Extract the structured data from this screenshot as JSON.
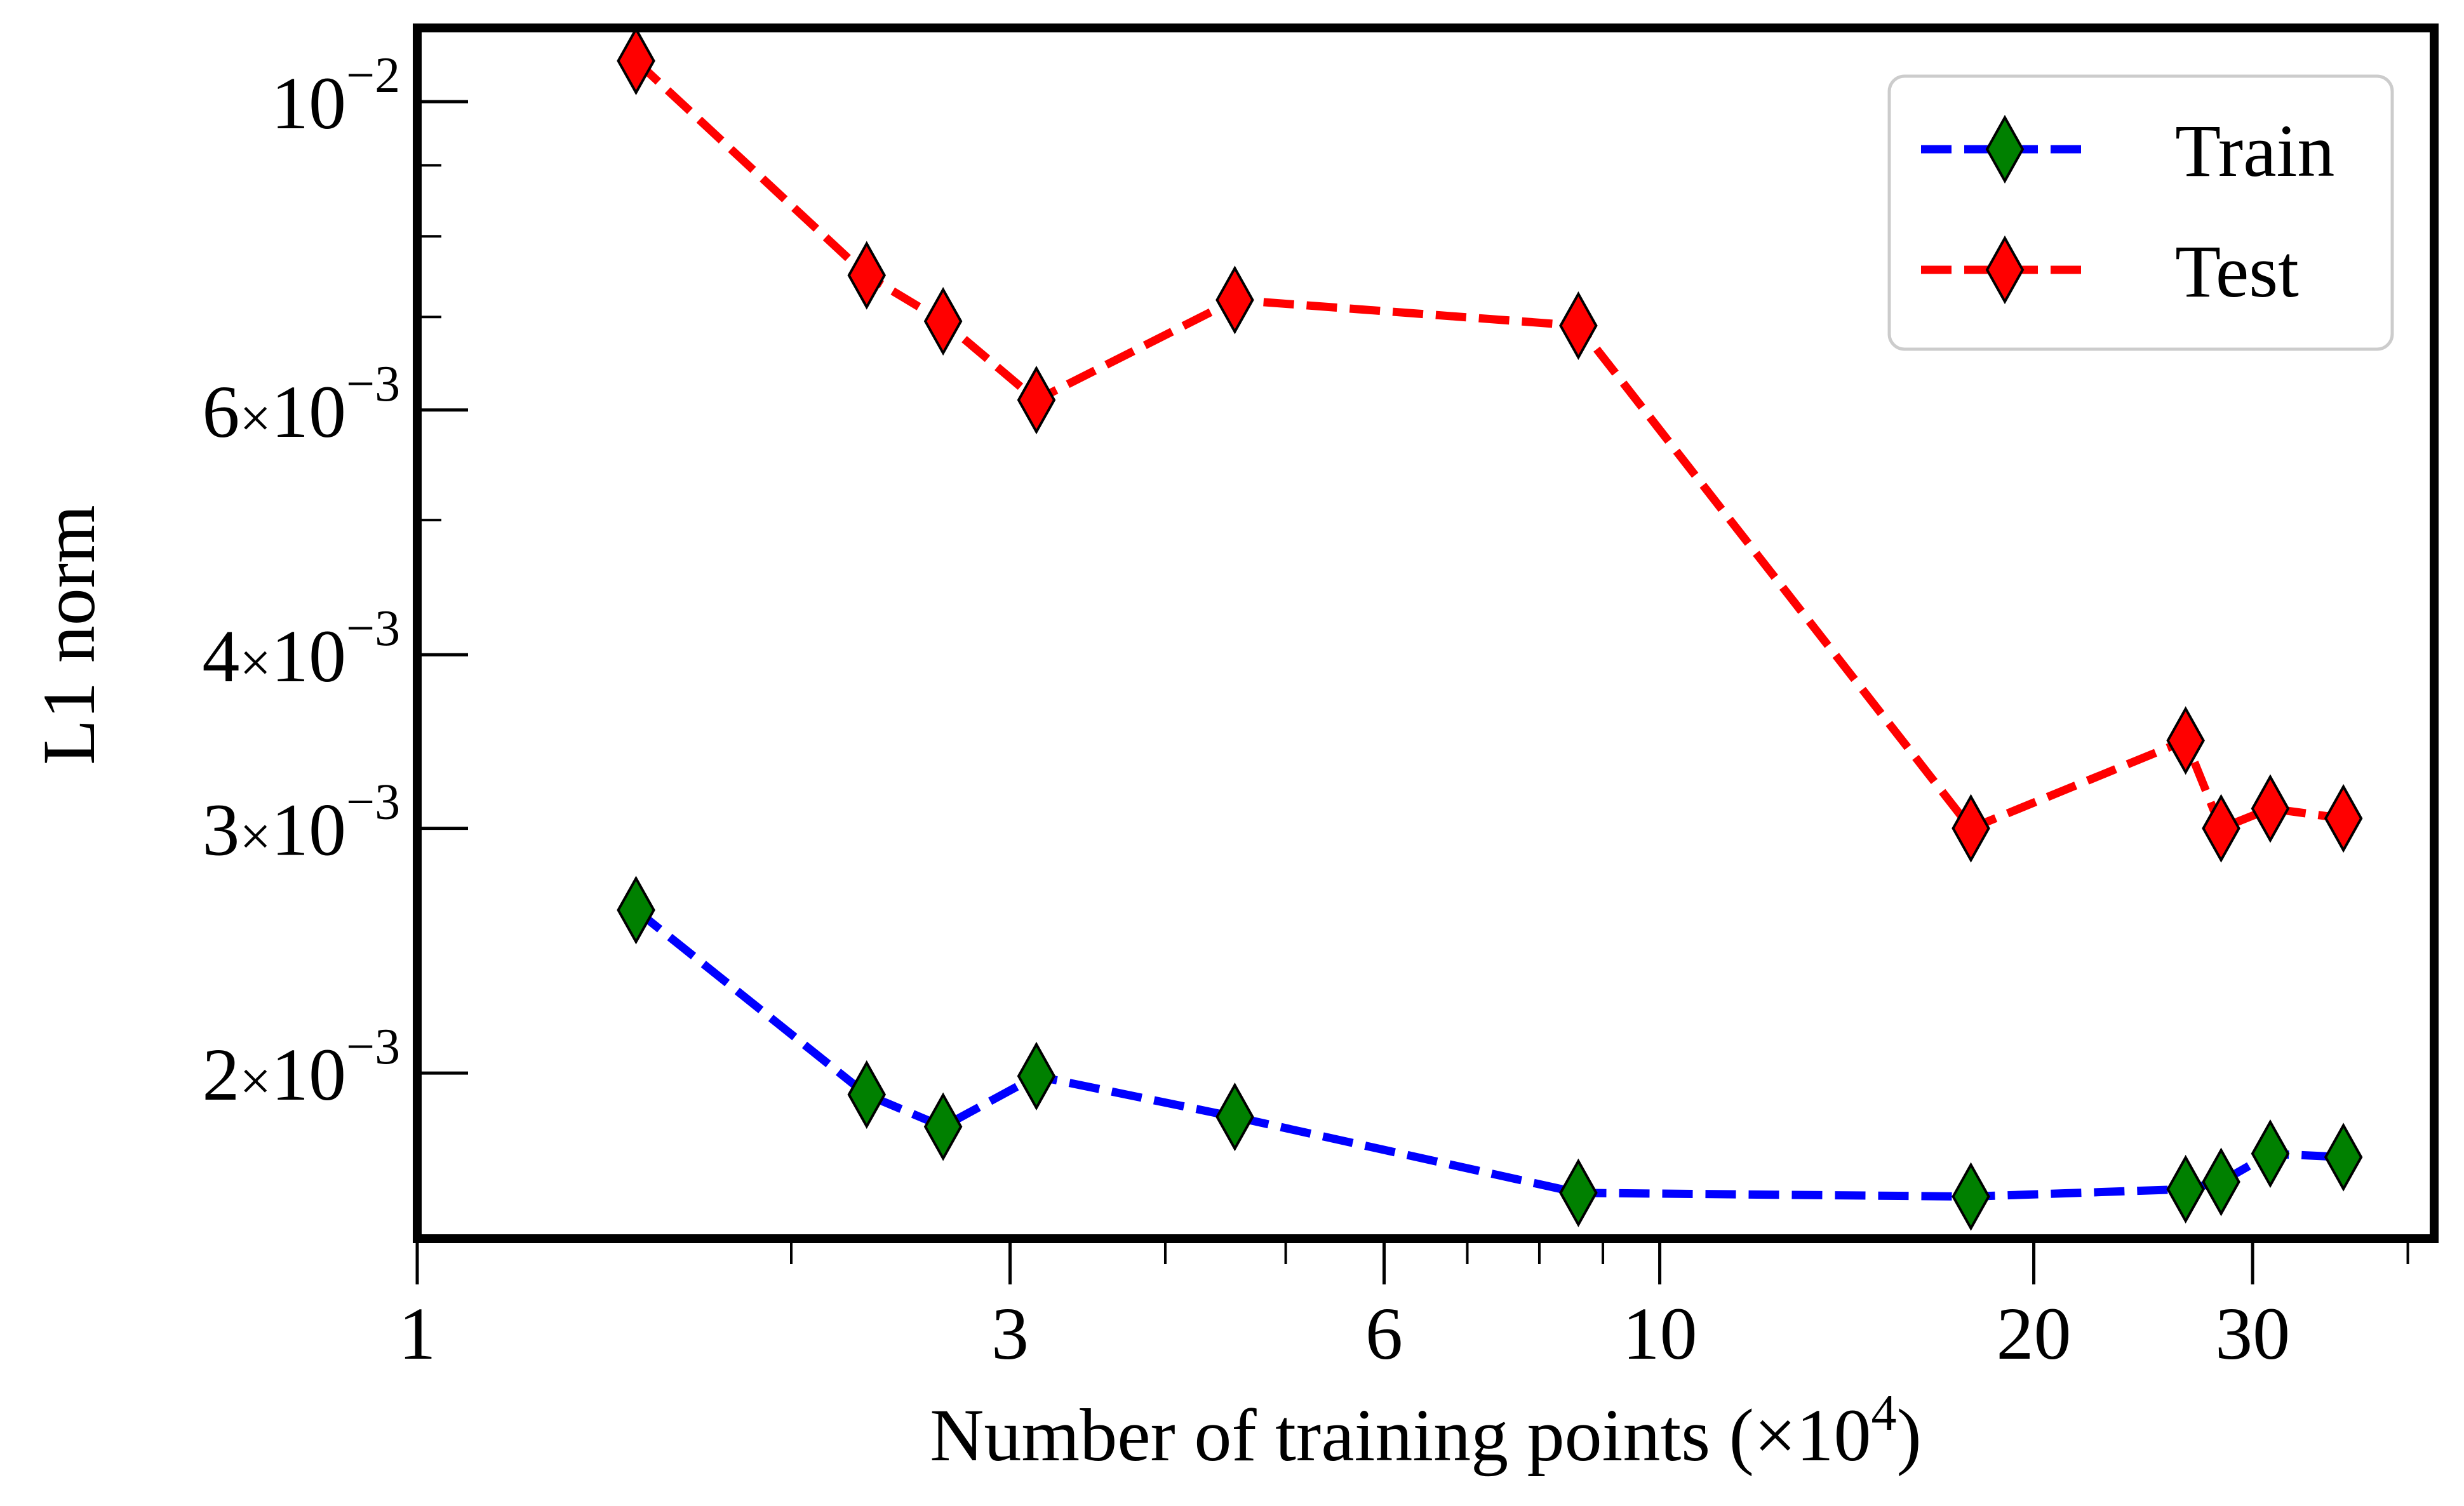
{
  "chart_data": {
    "type": "line",
    "xscale": "log",
    "yscale": "log",
    "xlabel": "Number of training points (×10",
    "xlabel_exponent": "4",
    "xlabel_close": ")",
    "ylabel": "L1 norm",
    "xlim": [
      1,
      42
    ],
    "ylim": [
      0.00152,
      0.0113
    ],
    "x_ticks": [
      {
        "value": 1,
        "label": "1"
      },
      {
        "value": 3,
        "label": "3"
      },
      {
        "value": 6,
        "label": "6"
      },
      {
        "value": 10,
        "label": "10"
      },
      {
        "value": 20,
        "label": "20"
      },
      {
        "value": 30,
        "label": "30"
      }
    ],
    "x_minor_ticks": [
      2,
      4,
      5,
      7,
      8,
      9,
      40
    ],
    "y_ticks": [
      {
        "value": 0.01,
        "mantissa": "10",
        "exponent": "−2",
        "has_coef": false
      },
      {
        "value": 0.006,
        "coef": "6",
        "mantissa": "10",
        "exponent": "−3",
        "has_coef": true
      },
      {
        "value": 0.004,
        "coef": "4",
        "mantissa": "10",
        "exponent": "−3",
        "has_coef": true
      },
      {
        "value": 0.003,
        "coef": "3",
        "mantissa": "10",
        "exponent": "−3",
        "has_coef": true
      },
      {
        "value": 0.002,
        "coef": "2",
        "mantissa": "10",
        "exponent": "−3",
        "has_coef": true
      }
    ],
    "times_symbol": "×",
    "y_minor_ticks": [
      0.009,
      0.008,
      0.007,
      0.005
    ],
    "series": [
      {
        "name": "Train",
        "line_color": "#0000ff",
        "marker_color": "#008000",
        "x": [
          1.5,
          2.3,
          2.65,
          3.15,
          4.55,
          8.6,
          17.8,
          26.5,
          28.3,
          31,
          35.5
        ],
        "y": [
          0.00262,
          0.00193,
          0.00183,
          0.00199,
          0.00186,
          0.00164,
          0.00163,
          0.00165,
          0.00167,
          0.00175,
          0.00174
        ]
      },
      {
        "name": "Test",
        "line_color": "#ff0000",
        "marker_color": "#ff0000",
        "x": [
          1.5,
          2.3,
          2.65,
          3.15,
          4.55,
          8.6,
          17.8,
          26.5,
          28.3,
          31,
          35.5
        ],
        "y": [
          0.0107,
          0.0075,
          0.00695,
          0.0061,
          0.0072,
          0.0069,
          0.003,
          0.00347,
          0.003,
          0.0031,
          0.00305
        ]
      }
    ],
    "legend_position": "top-right"
  }
}
